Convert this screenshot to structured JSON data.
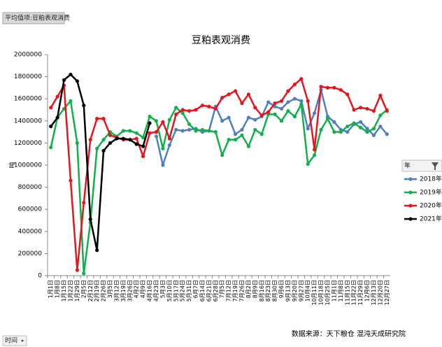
{
  "filter_button": "平均值项:豆粕表观消费",
  "axis_field_button": "时间",
  "chart_data": {
    "type": "line",
    "title": "豆粕表观消费",
    "y_label": "吨",
    "legend_title": "年",
    "source": "数据来源：天下粮仓 混沌天成研究院",
    "legend": "right",
    "grid": false,
    "categories": [
      "1月1日",
      "1月8日",
      "1月15日",
      "1月22日",
      "1月29日",
      "2月5日",
      "2月12日",
      "2月19日",
      "2月26日",
      "3月5日",
      "3月12日",
      "3月19日",
      "3月26日",
      "4月2日",
      "4月9日",
      "4月16日",
      "4月23日",
      "5月3日",
      "5月10日",
      "5月17日",
      "5月24日",
      "5月31日",
      "6月7日",
      "6月14日",
      "6月21日",
      "6月28日",
      "7月5日",
      "7月12日",
      "7月19日",
      "7月26日",
      "8月2日",
      "8月9日",
      "8月16日",
      "8月23日",
      "8月30日",
      "9月6日",
      "9月13日",
      "9月20日",
      "9月27日",
      "10月4日",
      "10月11日",
      "10月18日",
      "10月25日",
      "11月1日",
      "11月8日",
      "11月15日",
      "11月22日",
      "11月29日",
      "12月6日",
      "12月13日",
      "12月20日",
      "12月27日"
    ],
    "ylim": [
      0,
      2000000
    ],
    "yticks": [
      0,
      200000,
      400000,
      600000,
      800000,
      1000000,
      1200000,
      1400000,
      1600000,
      1800000,
      2000000
    ],
    "series": [
      {
        "name": "2018年",
        "color": "#4f7fbf",
        "values": [
          null,
          null,
          null,
          null,
          null,
          null,
          null,
          null,
          null,
          null,
          null,
          null,
          null,
          null,
          null,
          null,
          1260000,
          1000000,
          1180000,
          1320000,
          1310000,
          1320000,
          1330000,
          1300000,
          1310000,
          1530000,
          1400000,
          1430000,
          1280000,
          1320000,
          1430000,
          1410000,
          1440000,
          1570000,
          1530000,
          1510000,
          1570000,
          1600000,
          1580000,
          1330000,
          1470000,
          1680000,
          1440000,
          1390000,
          1320000,
          1300000,
          1370000,
          1390000,
          1330000,
          1270000,
          1350000,
          1280000
        ]
      },
      {
        "name": "2019年",
        "color": "#12b04a",
        "values": [
          1160000,
          1430000,
          1510000,
          1580000,
          1200000,
          20000,
          480000,
          1150000,
          1230000,
          1300000,
          1260000,
          1310000,
          1310000,
          1290000,
          1250000,
          1440000,
          1400000,
          1150000,
          1410000,
          1520000,
          1470000,
          1370000,
          1310000,
          1320000,
          1310000,
          1300000,
          1090000,
          1230000,
          1230000,
          1270000,
          1170000,
          1320000,
          1280000,
          1460000,
          1460000,
          1400000,
          1490000,
          1440000,
          1550000,
          1010000,
          1090000,
          1320000,
          1420000,
          1300000,
          1300000,
          1350000,
          1380000,
          1340000,
          1300000,
          1330000,
          1450000,
          1500000
        ]
      },
      {
        "name": "2020年",
        "color": "#e8141c",
        "values": [
          1520000,
          1620000,
          1720000,
          860000,
          50000,
          660000,
          1230000,
          1420000,
          1420000,
          1270000,
          1250000,
          1230000,
          1230000,
          1240000,
          1080000,
          1290000,
          1300000,
          1390000,
          1240000,
          1460000,
          1500000,
          1490000,
          1500000,
          1540000,
          1530000,
          1510000,
          1610000,
          1640000,
          1670000,
          1560000,
          1640000,
          1520000,
          1450000,
          1480000,
          1560000,
          1580000,
          1670000,
          1730000,
          1780000,
          1580000,
          1140000,
          1710000,
          1700000,
          1700000,
          1680000,
          1640000,
          1500000,
          1520000,
          1510000,
          1490000,
          1630000,
          1490000
        ]
      },
      {
        "name": "2021年",
        "color": "#000000",
        "values": [
          1350000,
          1430000,
          1770000,
          1820000,
          1760000,
          1540000,
          510000,
          230000,
          1130000,
          1200000,
          1240000,
          1240000,
          1230000,
          1190000,
          1170000,
          1380000,
          null,
          null,
          null,
          null,
          null,
          null,
          null,
          null,
          null,
          null,
          null,
          null,
          null,
          null,
          null,
          null,
          null,
          null,
          null,
          null,
          null,
          null,
          null,
          null,
          null,
          null,
          null,
          null,
          null,
          null,
          null,
          null,
          null,
          null,
          null,
          null
        ]
      }
    ]
  }
}
